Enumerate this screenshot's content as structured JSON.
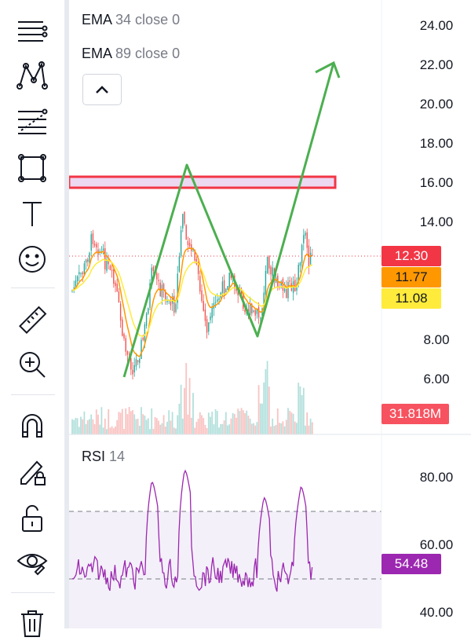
{
  "indicators": {
    "ema1": {
      "name": "EMA",
      "params": "34 close 0",
      "color": "#ff9800"
    },
    "ema2": {
      "name": "EMA",
      "params": "89 close 0",
      "color": "#ffeb3b"
    }
  },
  "price_axis": {
    "labels": [
      "24.00",
      "22.00",
      "20.00",
      "18.00",
      "16.00",
      "14.00",
      "8.00",
      "6.00"
    ],
    "badges": [
      {
        "text": "12.30",
        "bg": "#f23645",
        "fg": "#ffffff"
      },
      {
        "text": "11.77",
        "bg": "#ff9800",
        "fg": "#131722"
      },
      {
        "text": "11.08",
        "bg": "#ffeb3b",
        "fg": "#131722"
      },
      {
        "text": "31.818M",
        "bg": "#f7525f",
        "fg": "#ffffff"
      }
    ]
  },
  "rsi": {
    "name": "RSI",
    "param": "14",
    "labels": [
      "80.00",
      "60.00",
      "40.00"
    ],
    "value_badge": "54.48",
    "color": "#9c27b0"
  },
  "toolbar": {
    "icons": [
      "crosshair-lines-icon",
      "pattern-icon",
      "fib-icon",
      "rectangle-icon",
      "text-icon",
      "emoji-icon",
      "ruler-icon",
      "zoom-in-icon",
      "magnet-icon",
      "pencil-lock-icon",
      "lock-icon",
      "eye-icon",
      "trash-icon"
    ]
  },
  "colors": {
    "up": "#26a69a",
    "down": "#ef5350",
    "drawing": "#4caf50",
    "zone": "#f23645"
  }
}
